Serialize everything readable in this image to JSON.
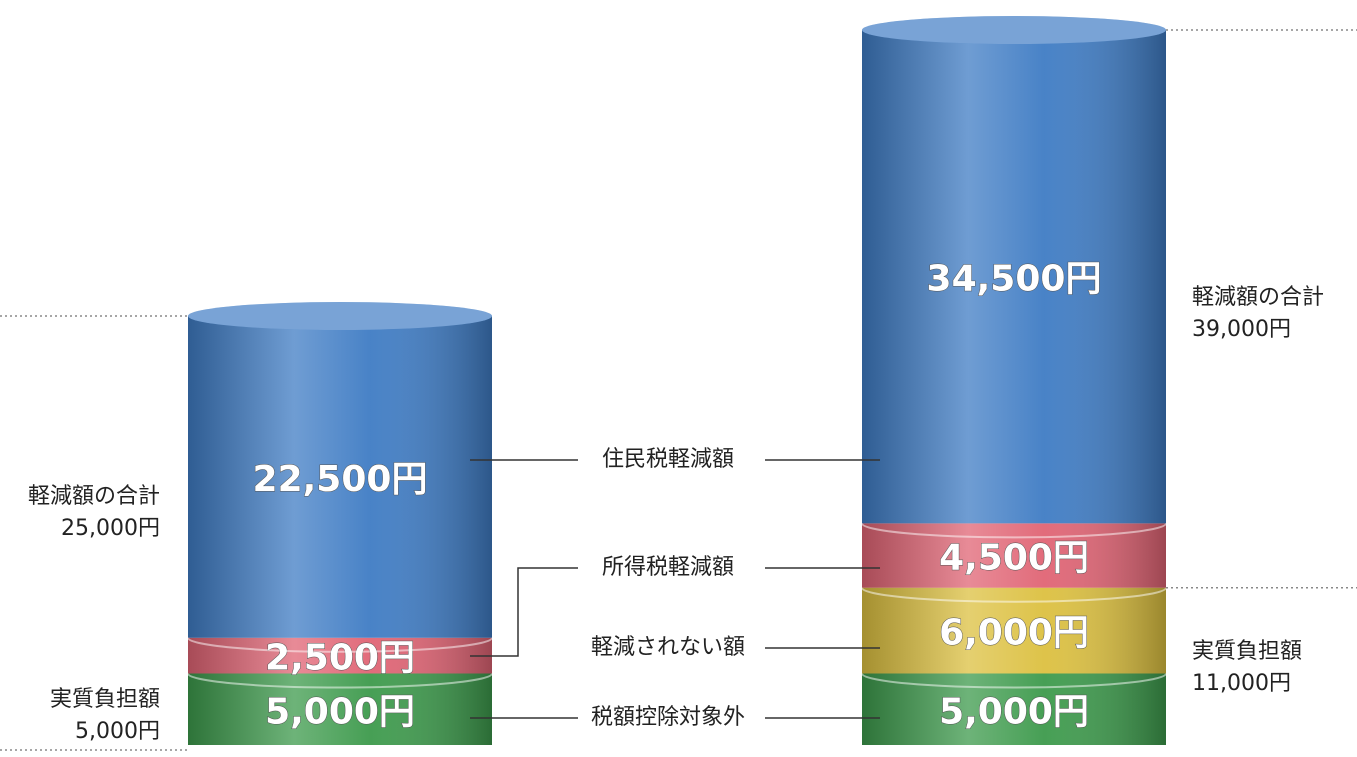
{
  "chart_data": {
    "type": "stacked-cylinder",
    "categories": [
      null,
      null
    ],
    "series": [
      {
        "name": "税額控除対象外",
        "color": "#3d9a4c",
        "values": [
          5000,
          5000
        ],
        "value_labels": [
          "5,000円",
          "5,000円"
        ]
      },
      {
        "name": "軽減されない額",
        "color": "#dcc040",
        "values": [
          null,
          6000
        ],
        "value_labels": [
          null,
          "6,000円"
        ]
      },
      {
        "name": "所得税軽減額",
        "color": "#e06474",
        "values": [
          2500,
          4500
        ],
        "value_labels": [
          "2,500円",
          "4,500円"
        ]
      },
      {
        "name": "住民税軽減額",
        "color": "#3f7cc4",
        "values": [
          22500,
          34500
        ],
        "value_labels": [
          "22,500円",
          "34,500円"
        ]
      }
    ],
    "annotations": [
      {
        "label": "軽減額の合計",
        "value": "25,000円"
      },
      {
        "label": "実質負担額",
        "value": "5,000円"
      },
      {
        "label": "軽減額の合計",
        "value": "39,000円"
      },
      {
        "label": "実質負担額",
        "value": "11,000円"
      }
    ],
    "ylim": [
      0,
      50000
    ]
  }
}
